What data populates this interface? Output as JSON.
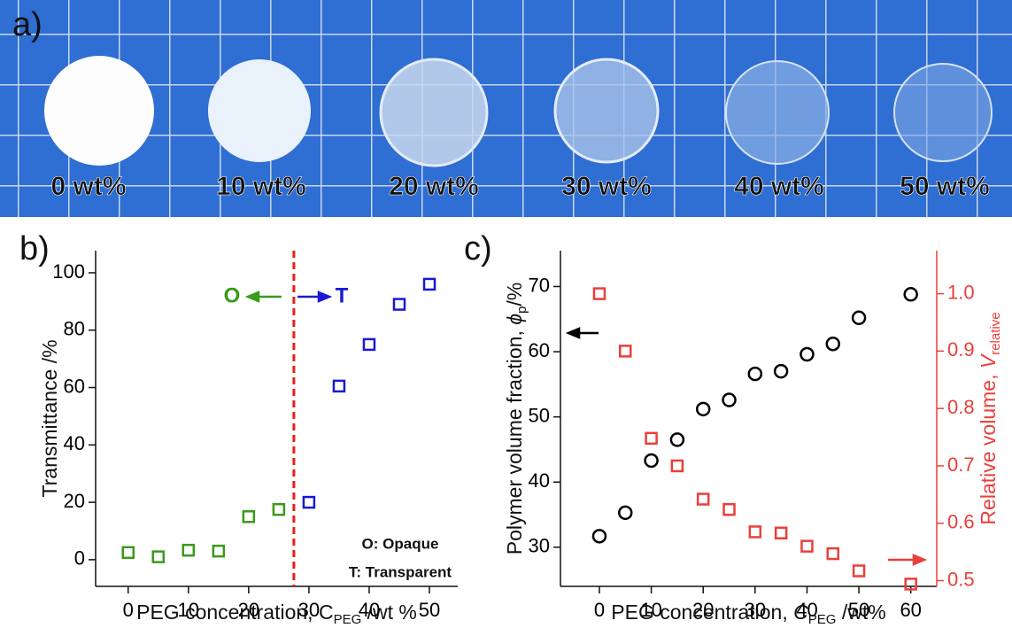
{
  "photo": {
    "label": "a)",
    "samples": [
      "0 wt%",
      "10 wt%",
      "20 wt%",
      "30 wt%",
      "40 wt%",
      "50 wt%"
    ]
  },
  "chart_data": [
    {
      "type": "scatter",
      "panel_label": "b)",
      "xlabel": {
        "text": "PEG concentration, C",
        "sub": "PEG",
        "suffix": " /wt %"
      },
      "ylabel": {
        "text": "Transmittance /%"
      },
      "xlim": [
        -5.4,
        54.7
      ],
      "xticks": [
        0,
        10,
        20,
        30,
        40,
        50
      ],
      "ylim": [
        -9.3,
        107.7
      ],
      "yticks": [
        0,
        20,
        40,
        60,
        80,
        100
      ],
      "series": [
        {
          "color": "#3a9a1a",
          "marker": "square",
          "x": [
            0,
            5,
            10,
            15,
            20,
            25
          ],
          "values": [
            2.5,
            1,
            3.3,
            3,
            15,
            17.5
          ]
        },
        {
          "color": "#1a1ad0",
          "marker": "square",
          "x": [
            30,
            35,
            40,
            45,
            50
          ],
          "values": [
            20,
            60.5,
            75,
            89,
            96
          ]
        }
      ],
      "vline": {
        "x": 27.5,
        "color": "#e8201a"
      },
      "annotations": [
        {
          "text": "O",
          "color": "#3a9a1a"
        },
        {
          "text": "T",
          "color": "#1a1ad0"
        },
        {
          "text": "O: Opaque",
          "color": "#111111"
        },
        {
          "text": "T: Transparent",
          "color": "#111111"
        }
      ]
    },
    {
      "type": "scatter",
      "panel_label": "c)",
      "xlabel": {
        "text": "PEG concentration, ",
        "sym": "C",
        "sub": "PEG",
        "suffix": " /wt%"
      },
      "ylabel": {
        "text": "Polymer volume fraction, ",
        "sym": "ϕ",
        "sub": "p",
        "suffix": "/%"
      },
      "y2label": {
        "text": "Relative volume, ",
        "sym": "V",
        "sub": "relative"
      },
      "xlim": [
        -7.5,
        65
      ],
      "xticks": [
        0,
        10,
        20,
        30,
        40,
        50,
        60
      ],
      "ylim": [
        24,
        75.5
      ],
      "yticks": [
        30,
        40,
        50,
        60,
        70
      ],
      "y2lim": [
        0.49,
        1.075
      ],
      "y2ticks": [
        0.5,
        0.6,
        0.7,
        0.8,
        0.9,
        {
          "value": 1,
          "label": "1.0"
        }
      ],
      "y2color": "#e8403a",
      "series": [
        {
          "color": "#000000",
          "marker": "circle",
          "x": [
            0,
            5,
            10,
            15,
            20,
            25,
            30,
            35,
            40,
            45,
            50,
            60
          ],
          "values": [
            31.7,
            35.3,
            43.3,
            46.5,
            51.2,
            52.6,
            56.6,
            57,
            59.6,
            61.2,
            65.2,
            68.8
          ]
        },
        {
          "color": "#e8403a",
          "marker": "square",
          "axis": "y2",
          "x": [
            0,
            5,
            10,
            15,
            20,
            25,
            30,
            35,
            40,
            45,
            50,
            60
          ],
          "values": [
            1.0,
            0.9,
            0.748,
            0.7,
            0.642,
            0.624,
            0.585,
            0.583,
            0.56,
            0.547,
            0.517,
            0.494
          ]
        }
      ]
    }
  ]
}
